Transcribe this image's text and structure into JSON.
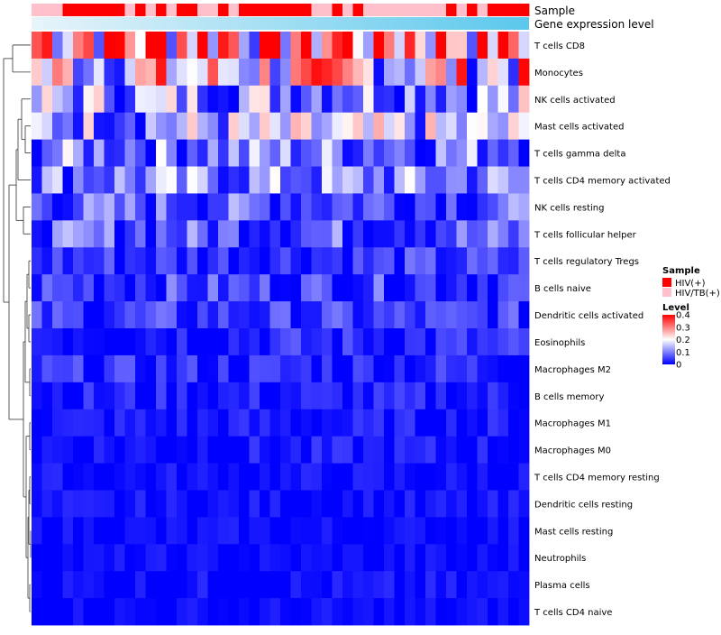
{
  "chart_data": {
    "type": "heatmap",
    "title": "",
    "annotations": [
      {
        "name": "Sample",
        "colors": {
          "HIV(+)": "#ff0000",
          "HIV/TB(+)": "#ffc0cb"
        }
      },
      {
        "name": "Gene expression level",
        "gradient": [
          "#e8f4fa",
          "#5bc8ec"
        ]
      }
    ],
    "sample_groups": [
      "HIV/TB(+)",
      "HIV/TB(+)",
      "HIV/TB(+)",
      "HIV(+)",
      "HIV(+)",
      "HIV(+)",
      "HIV(+)",
      "HIV(+)",
      "HIV(+)",
      "HIV/TB(+)",
      "HIV(+)",
      "HIV/TB(+)",
      "HIV(+)",
      "HIV/TB(+)",
      "HIV(+)",
      "HIV(+)",
      "HIV/TB(+)",
      "HIV/TB(+)",
      "HIV(+)",
      "HIV/TB(+)",
      "HIV(+)",
      "HIV(+)",
      "HIV(+)",
      "HIV(+)",
      "HIV(+)",
      "HIV(+)",
      "HIV(+)",
      "HIV/TB(+)",
      "HIV/TB(+)",
      "HIV(+)",
      "HIV/TB(+)",
      "HIV(+)",
      "HIV/TB(+)",
      "HIV/TB(+)",
      "HIV/TB(+)",
      "HIV/TB(+)",
      "HIV/TB(+)",
      "HIV/TB(+)",
      "HIV/TB(+)",
      "HIV/TB(+)",
      "HIV(+)",
      "HIV/TB(+)",
      "HIV(+)",
      "HIV/TB(+)",
      "HIV(+)",
      "HIV(+)",
      "HIV(+)",
      "HIV(+)"
    ],
    "rows": [
      "T cells CD8",
      "Monocytes",
      "NK cells activated",
      "Mast cells activated",
      "T cells gamma delta",
      "T cells CD4 memory activated",
      "NK cells resting",
      "T cells follicular helper",
      "T cells regulatory  Tregs",
      "B cells naive",
      "Dendritic cells activated",
      "Eosinophils",
      "Macrophages M2",
      "B cells memory",
      "Macrophages M1",
      "Macrophages M0",
      "T cells CD4 memory resting",
      "Dendritic cells resting",
      "Mast cells resting",
      "Neutrophils",
      "Plasma cells",
      "T cells CD4 naive"
    ],
    "row_means": [
      0.34,
      0.2,
      0.13,
      0.13,
      0.1,
      0.1,
      0.07,
      0.07,
      0.04,
      0.05,
      0.04,
      0.03,
      0.03,
      0.02,
      0.015,
      0.015,
      0.008,
      0.008,
      0.005,
      0.004,
      0.008,
      0.004
    ],
    "legend": {
      "sample_title": "Sample",
      "sample_entries": [
        {
          "label": "HIV(+)",
          "color": "#ff0000"
        },
        {
          "label": "HIV/TB(+)",
          "color": "#ffc0cb"
        }
      ],
      "level_title": "Level",
      "level_ticks": [
        {
          "value": 0.4,
          "label": "0.4"
        },
        {
          "value": 0.3,
          "label": "0.3"
        },
        {
          "value": 0.2,
          "label": "0.2"
        },
        {
          "value": 0.1,
          "label": "0.1"
        },
        {
          "value": 0,
          "label": "0"
        }
      ],
      "range": [
        0,
        0.4
      ],
      "colors": {
        "low": "#0000ff",
        "mid": "#ffffff",
        "high": "#ff0000"
      }
    }
  }
}
